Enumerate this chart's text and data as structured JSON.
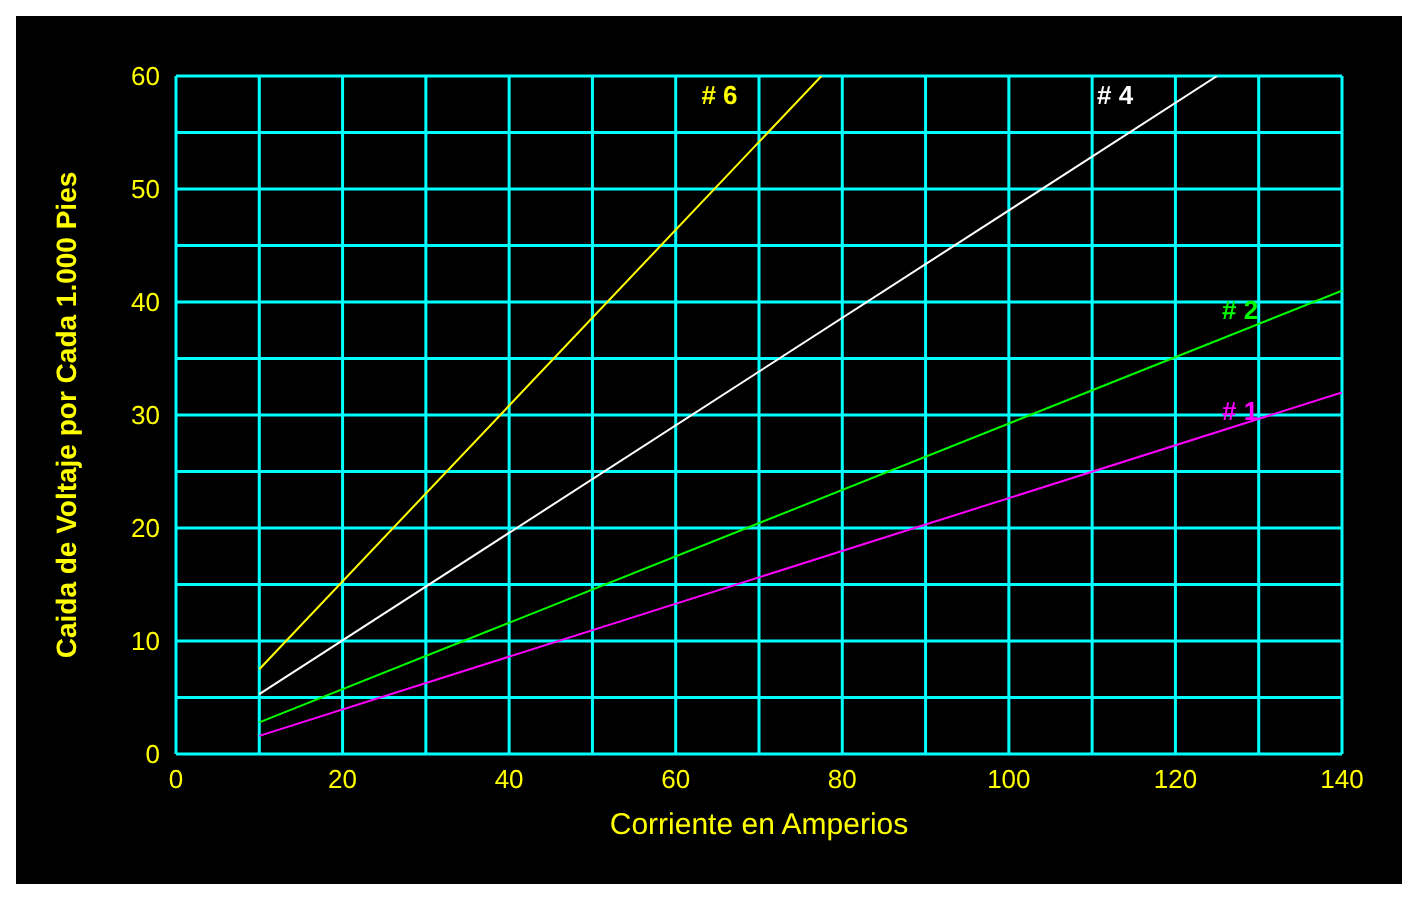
{
  "chart_data": {
    "type": "line",
    "xlabel": "Corriente en Amperios",
    "ylabel": "Caida de Voltaje por Cada 1.000 Pies",
    "xlim": [
      0,
      140
    ],
    "ylim": [
      0,
      60
    ],
    "xticks": [
      0,
      {
        "value": 10,
        "label": null
      },
      20,
      {
        "value": 30,
        "label": null
      },
      40,
      {
        "value": 50,
        "label": null
      },
      60,
      {
        "value": 70,
        "label": null
      },
      80,
      {
        "value": 90,
        "label": null
      },
      100,
      {
        "value": 110,
        "label": null
      },
      120,
      {
        "value": 130,
        "label": null
      },
      140
    ],
    "yticks": [
      0,
      {
        "value": 5,
        "label": null
      },
      10,
      {
        "value": 15,
        "label": null
      },
      20,
      {
        "value": 25,
        "label": null
      },
      30,
      {
        "value": 35,
        "label": null
      },
      40,
      {
        "value": 45,
        "label": null
      },
      50,
      {
        "value": 55,
        "label": null
      },
      60
    ],
    "grid": true,
    "marker": "none",
    "line_style": "solid",
    "series": [
      {
        "name": "# 6",
        "color": "#ffff00",
        "x": [
          10,
          77.5
        ],
        "values": [
          7.5,
          60
        ]
      },
      {
        "name": "# 4",
        "color": "#ffffff",
        "x": [
          10,
          125
        ],
        "values": [
          5.3,
          60
        ]
      },
      {
        "name": "# 2",
        "color": "#00ff00",
        "x": [
          10,
          140
        ],
        "values": [
          2.8,
          41
        ]
      },
      {
        "name": "# 1",
        "color": "#ff00ff",
        "x": [
          10,
          140
        ],
        "values": [
          1.6,
          32
        ]
      }
    ]
  }
}
